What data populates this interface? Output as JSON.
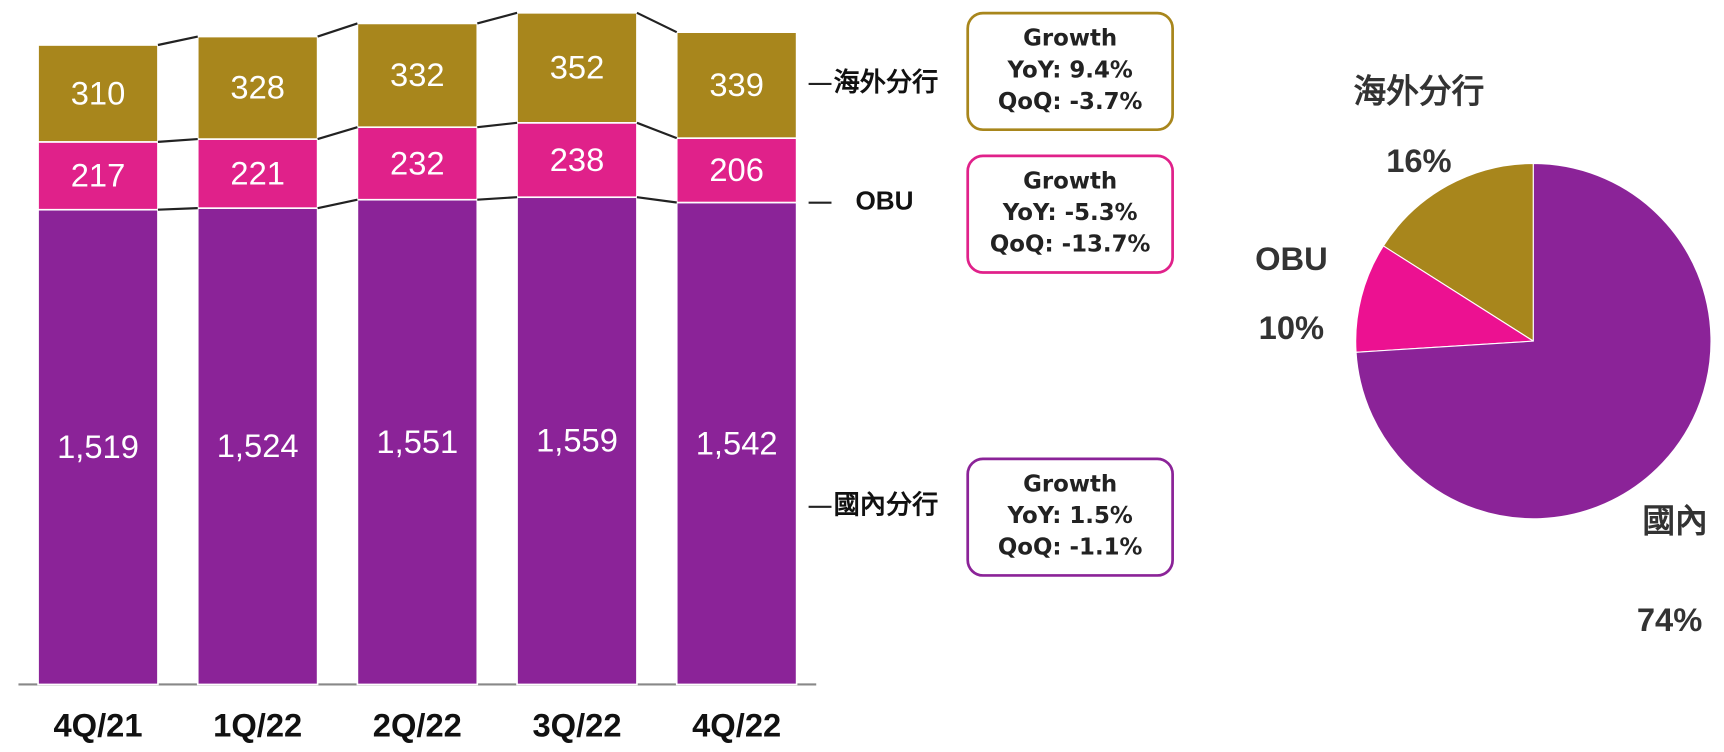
{
  "chart_data": [
    {
      "type": "stacked-bar",
      "categories": [
        "4Q/21",
        "1Q/22",
        "2Q/22",
        "3Q/22",
        "4Q/22"
      ],
      "ylim": [
        0,
        2190
      ],
      "series": [
        {
          "name": "國內分行",
          "color": "#8b2398",
          "values": [
            1519,
            1524,
            1551,
            1559,
            1542
          ],
          "value_labels": [
            "1,519",
            "1,524",
            "1,551",
            "1,559",
            "1,542"
          ],
          "growth": [
            "Growth",
            "YoY: 1.5%",
            "QoQ: -1.1%"
          ]
        },
        {
          "name": "OBU",
          "color": "#e0218a",
          "values": [
            217,
            221,
            232,
            238,
            206
          ],
          "growth": [
            "Growth",
            "YoY: -5.3%",
            "QoQ: -13.7%"
          ]
        },
        {
          "name": "海外分行",
          "color": "#a8861c",
          "values": [
            310,
            328,
            332,
            352,
            339
          ],
          "growth": [
            "Growth",
            "YoY: 9.4%",
            "QoQ: -3.7%"
          ]
        }
      ]
    },
    {
      "type": "pie",
      "categories": [
        "海外分行",
        "OBU",
        "國內"
      ],
      "values": [
        16,
        10,
        74
      ],
      "value_labels": [
        "16%",
        "10%",
        "74%"
      ],
      "colors": [
        "#a8861c",
        "#ec1191",
        "#8b2398"
      ]
    }
  ]
}
